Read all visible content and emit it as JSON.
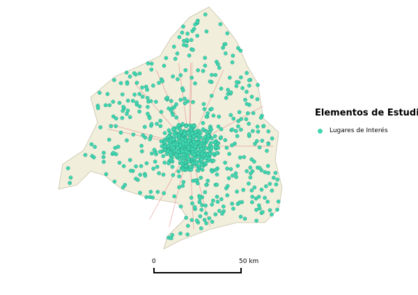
{
  "legend": {
    "title": "Elementos de Estudio",
    "items": [
      {
        "label": "Lugares de Interés",
        "color": "#3fd6b0",
        "symbol": "circle"
      }
    ]
  },
  "scalebar": {
    "start_label": "0",
    "end_label": "50 km"
  },
  "colors": {
    "points": "#3fd6b0",
    "point_stroke": "#1f8f75",
    "basemap": "#f3efdf",
    "roads": "#e06060"
  }
}
